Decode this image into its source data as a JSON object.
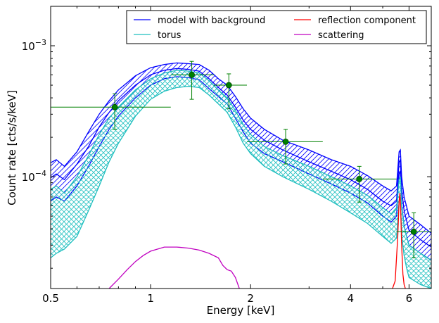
{
  "chart_data": {
    "type": "line",
    "title": "",
    "xlabel": "Energy [keV]",
    "ylabel": "Count rate [cts/s/keV]",
    "x_scale": "log",
    "y_scale": "log",
    "xlim": [
      0.5,
      7.0
    ],
    "ylim": [
      1.4e-05,
      0.002
    ],
    "x_ticks": [
      {
        "value": 0.5,
        "label": "0.5"
      },
      {
        "value": 1,
        "label": "1"
      },
      {
        "value": 2,
        "label": "2"
      },
      {
        "value": 4,
        "label": "4"
      },
      {
        "value": 6,
        "label": "6"
      }
    ],
    "y_ticks": [
      {
        "value": 0.0001,
        "base": "10",
        "exp": "−4"
      },
      {
        "value": 0.001,
        "base": "10",
        "exp": "−3"
      }
    ],
    "grid": false,
    "legend_position": "top-right",
    "legend": [
      {
        "label": "model with background",
        "color": "#0000ff"
      },
      {
        "label": "reflection component",
        "color": "#ff0000"
      },
      {
        "label": "torus",
        "color": "#1fbfbf"
      },
      {
        "label": "scattering",
        "color": "#c000c0"
      }
    ],
    "series": [
      {
        "name": "model with background",
        "color": "#0000ff",
        "hatch": "diagonal",
        "x": [
          0.5,
          0.52,
          0.55,
          0.6,
          0.65,
          0.7,
          0.75,
          0.8,
          0.9,
          1.0,
          1.1,
          1.2,
          1.3,
          1.4,
          1.5,
          1.6,
          1.7,
          1.8,
          1.9,
          2.0,
          2.2,
          2.5,
          3.0,
          3.5,
          4.0,
          4.5,
          5.0,
          5.3,
          5.5,
          5.6,
          5.65,
          5.7,
          5.8,
          5.9,
          6.0,
          6.5,
          7.0
        ],
        "mid": [
          9.8e-05,
          0.000105,
          9.5e-05,
          0.000125,
          0.00017,
          0.00024,
          0.00031,
          0.00038,
          0.0005,
          0.0006,
          0.00065,
          0.00067,
          0.00066,
          0.00064,
          0.00056,
          0.00048,
          0.00042,
          0.00034,
          0.00027,
          0.00023,
          0.00019,
          0.00016,
          0.00013,
          0.00011,
          9.5e-05,
          8e-05,
          6.5e-05,
          6e-05,
          6.5e-05,
          0.00013,
          0.000135,
          8e-05,
          5.5e-05,
          4.6e-05,
          3.9e-05,
          3.3e-05,
          2.9e-05
        ],
        "upper": [
          0.000128,
          0.000135,
          0.00012,
          0.000155,
          0.00022,
          0.0003,
          0.00038,
          0.00046,
          0.00059,
          0.00068,
          0.00072,
          0.00074,
          0.00073,
          0.00072,
          0.00065,
          0.00056,
          0.0005,
          0.00041,
          0.00033,
          0.00028,
          0.00023,
          0.00019,
          0.00016,
          0.000135,
          0.00012,
          0.000102,
          8.5e-05,
          7.8e-05,
          8.5e-05,
          0.000155,
          0.00016,
          0.0001,
          7e-05,
          5.9e-05,
          5e-05,
          4.3e-05,
          3.7e-05
        ],
        "lower": [
          6.5e-05,
          7e-05,
          6.5e-05,
          8.5e-05,
          0.00012,
          0.00017,
          0.00023,
          0.00029,
          0.0004,
          0.0005,
          0.00056,
          0.00058,
          0.00057,
          0.00055,
          0.00047,
          0.00041,
          0.00036,
          0.00028,
          0.00022,
          0.00018,
          0.00015,
          0.00013,
          0.000105,
          8.8e-05,
          7.5e-05,
          6.3e-05,
          5e-05,
          4.5e-05,
          5e-05,
          0.000105,
          0.00011,
          6.2e-05,
          4.2e-05,
          3.5e-05,
          3e-05,
          2.6e-05,
          2.3e-05
        ]
      },
      {
        "name": "torus",
        "color": "#1fbfbf",
        "hatch": "cross",
        "x": [
          0.5,
          0.52,
          0.55,
          0.6,
          0.65,
          0.7,
          0.75,
          0.8,
          0.9,
          1.0,
          1.1,
          1.2,
          1.3,
          1.4,
          1.5,
          1.6,
          1.7,
          1.8,
          1.9,
          2.0,
          2.2,
          2.5,
          3.0,
          3.5,
          4.0,
          4.5,
          5.0,
          5.3,
          5.5,
          5.6,
          5.65,
          5.7,
          5.8,
          5.9,
          6.0,
          6.5,
          7.0
        ],
        "upper": [
          8e-05,
          8.5e-05,
          7.5e-05,
          0.0001,
          0.000145,
          0.00021,
          0.00028,
          0.00034,
          0.00046,
          0.00056,
          0.00062,
          0.00065,
          0.00064,
          0.00062,
          0.00054,
          0.00046,
          0.0004,
          0.00032,
          0.00025,
          0.00021,
          0.00017,
          0.000145,
          0.00012,
          0.0001,
          8.5e-05,
          7.2e-05,
          5.8e-05,
          5.2e-05,
          5.8e-05,
          9.5e-05,
          0.0001,
          6e-05,
          4.2e-05,
          3.5e-05,
          3e-05,
          2.6e-05,
          2.3e-05
        ],
        "lower": [
          2.4e-05,
          2.6e-05,
          2.8e-05,
          3.5e-05,
          5.5e-05,
          8.5e-05,
          0.00013,
          0.00018,
          0.00029,
          0.00039,
          0.00045,
          0.00048,
          0.00049,
          0.00048,
          0.00042,
          0.00036,
          0.00031,
          0.00024,
          0.00018,
          0.00015,
          0.00012,
          0.0001,
          8e-05,
          6.5e-05,
          5.3e-05,
          4.4e-05,
          3.5e-05,
          3.1e-05,
          3.4e-05,
          6.5e-05,
          7e-05,
          3.6e-05,
          2.5e-05,
          2e-05,
          1.7e-05,
          1.5e-05,
          1.4e-05
        ]
      },
      {
        "name": "reflection component",
        "color": "#ff0000",
        "x": [
          5.35,
          5.45,
          5.55,
          5.6,
          5.63,
          5.66,
          5.7,
          5.75,
          5.8,
          5.85
        ],
        "values": [
          1.4e-05,
          1.6e-05,
          3.5e-05,
          6.5e-05,
          7.5e-05,
          6e-05,
          3e-05,
          1.8e-05,
          1.5e-05,
          1.4e-05
        ]
      },
      {
        "name": "scattering",
        "color": "#c000c0",
        "x": [
          0.75,
          0.8,
          0.85,
          0.9,
          0.95,
          1.0,
          1.1,
          1.2,
          1.3,
          1.4,
          1.5,
          1.6,
          1.65,
          1.7,
          1.75,
          1.8,
          1.85
        ],
        "values": [
          1.4e-05,
          1.65e-05,
          1.95e-05,
          2.25e-05,
          2.5e-05,
          2.7e-05,
          2.9e-05,
          2.9e-05,
          2.85e-05,
          2.75e-05,
          2.6e-05,
          2.4e-05,
          2.1e-05,
          1.95e-05,
          1.9e-05,
          1.7e-05,
          1.4e-05
        ]
      },
      {
        "name": "data",
        "color": "#008000",
        "points": [
          {
            "x": 0.78,
            "y": 0.00034,
            "xerr": [
              0.5,
              1.15
            ],
            "yerr": [
              0.00023,
              0.00043
            ]
          },
          {
            "x": 1.33,
            "y": 0.0006,
            "xerr": [
              1.15,
              1.55
            ],
            "yerr": [
              0.00039,
              0.00076
            ]
          },
          {
            "x": 1.72,
            "y": 0.0005,
            "xerr": [
              1.55,
              1.95
            ],
            "yerr": [
              0.00033,
              0.00061
            ]
          },
          {
            "x": 2.55,
            "y": 0.000185,
            "xerr": [
              1.95,
              3.3
            ],
            "yerr": [
              0.000125,
              0.00023
            ]
          },
          {
            "x": 4.25,
            "y": 9.6e-05,
            "xerr": [
              3.3,
              5.5
            ],
            "yerr": [
              6.4e-05,
              0.00012
            ]
          },
          {
            "x": 6.2,
            "y": 3.8e-05,
            "xerr": [
              5.5,
              7.0
            ],
            "yerr": [
              2.4e-05,
              5.3e-05
            ]
          }
        ]
      }
    ]
  }
}
